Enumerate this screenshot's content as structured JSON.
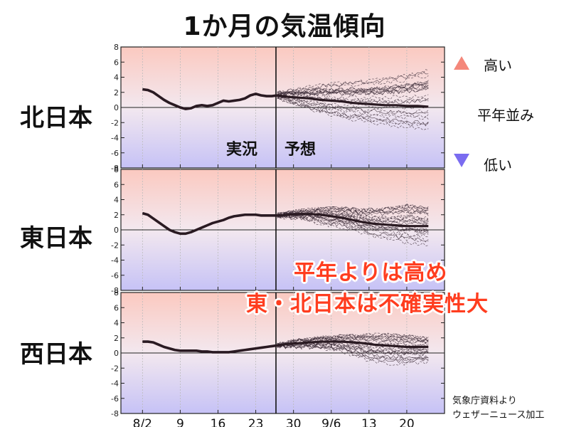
{
  "title": "1か月の気温傾向",
  "legend": {
    "high": "高い",
    "normal": "平年並み",
    "low": "低い",
    "high_color": "#f08070",
    "low_color": "#7070f0"
  },
  "annotations": {
    "line1": "平年よりは高め",
    "line2": "東・北日本は不確実性大",
    "color": "#ff3d1f"
  },
  "labels": {
    "actual": "実況",
    "forecast": "予想"
  },
  "source": {
    "line1": "気象庁資料より",
    "line2": "ウェザーニュース加工"
  },
  "chart_data": [
    {
      "type": "line",
      "region": "北日本",
      "ylim": [
        -8,
        8
      ],
      "yticks": [
        -8,
        -6,
        -4,
        -2,
        0,
        2,
        4,
        6,
        8
      ],
      "x_tick_labels": [
        "8/2",
        "9",
        "16",
        "23",
        "30",
        "9/6",
        "13",
        "20"
      ],
      "x_tick_days": [
        0,
        7,
        14,
        21,
        28,
        35,
        42,
        49
      ],
      "forecast_start_day": 25,
      "observed": {
        "x": [
          0,
          1,
          2,
          3,
          4,
          5,
          6,
          7,
          8,
          9,
          10,
          11,
          12,
          13,
          14,
          15,
          16,
          17,
          18,
          19,
          20,
          21,
          22,
          23,
          24,
          25
        ],
        "y": [
          2.4,
          2.3,
          2.0,
          1.5,
          1.0,
          0.6,
          0.3,
          0.0,
          -0.2,
          -0.1,
          0.2,
          0.3,
          0.2,
          0.3,
          0.6,
          0.9,
          0.8,
          0.9,
          1.0,
          1.2,
          1.6,
          1.8,
          1.6,
          1.5,
          1.5,
          1.6
        ]
      },
      "ensemble_mean": {
        "x": [
          25,
          27,
          29,
          31,
          33,
          35,
          37,
          39,
          41,
          43,
          45,
          47,
          49,
          51,
          53
        ],
        "y": [
          1.6,
          1.4,
          1.3,
          1.2,
          1.0,
          0.9,
          0.8,
          0.6,
          0.5,
          0.4,
          0.3,
          0.3,
          0.2,
          0.2,
          0.1
        ]
      },
      "ensemble_spread": {
        "x": [
          25,
          29,
          33,
          37,
          41,
          45,
          49,
          53
        ],
        "upper": [
          2.0,
          2.8,
          3.4,
          3.8,
          4.2,
          4.6,
          5.2,
          6.0
        ],
        "lower": [
          1.2,
          0.0,
          -1.0,
          -1.8,
          -2.4,
          -2.8,
          -3.2,
          -3.4
        ]
      }
    },
    {
      "type": "line",
      "region": "東日本",
      "ylim": [
        -8,
        8
      ],
      "yticks": [
        -8,
        -6,
        -4,
        -2,
        0,
        2,
        4,
        6,
        8
      ],
      "x_tick_labels": [
        "8/2",
        "9",
        "16",
        "23",
        "30",
        "9/6",
        "13",
        "20"
      ],
      "x_tick_days": [
        0,
        7,
        14,
        21,
        28,
        35,
        42,
        49
      ],
      "forecast_start_day": 25,
      "observed": {
        "x": [
          0,
          1,
          2,
          3,
          4,
          5,
          6,
          7,
          8,
          9,
          10,
          11,
          12,
          13,
          14,
          15,
          16,
          17,
          18,
          19,
          20,
          21,
          22,
          23,
          24,
          25
        ],
        "y": [
          2.2,
          2.0,
          1.5,
          1.0,
          0.5,
          0.0,
          -0.3,
          -0.5,
          -0.5,
          -0.3,
          0.0,
          0.3,
          0.6,
          0.9,
          1.1,
          1.3,
          1.6,
          1.8,
          1.9,
          2.0,
          2.0,
          2.0,
          1.9,
          1.9,
          1.9,
          1.9
        ]
      },
      "ensemble_mean": {
        "x": [
          25,
          27,
          29,
          31,
          33,
          35,
          37,
          39,
          41,
          43,
          45,
          47,
          49,
          51,
          53
        ],
        "y": [
          1.9,
          2.0,
          2.1,
          2.1,
          2.0,
          1.8,
          1.6,
          1.3,
          1.0,
          0.8,
          0.7,
          0.6,
          0.5,
          0.5,
          0.5
        ]
      },
      "ensemble_spread": {
        "x": [
          25,
          29,
          33,
          37,
          41,
          45,
          49,
          53
        ],
        "upper": [
          2.1,
          2.6,
          3.0,
          3.2,
          3.0,
          3.2,
          3.8,
          3.4
        ],
        "lower": [
          1.7,
          1.4,
          0.6,
          0.0,
          -0.8,
          -1.6,
          -2.2,
          -2.4
        ]
      }
    },
    {
      "type": "line",
      "region": "西日本",
      "ylim": [
        -8,
        8
      ],
      "yticks": [
        -8,
        -6,
        -4,
        -2,
        0,
        2,
        4,
        6,
        8
      ],
      "x_tick_labels": [
        "8/2",
        "9",
        "16",
        "23",
        "30",
        "9/6",
        "13",
        "20"
      ],
      "x_tick_days": [
        0,
        7,
        14,
        21,
        28,
        35,
        42,
        49
      ],
      "forecast_start_day": 25,
      "observed": {
        "x": [
          0,
          1,
          2,
          3,
          4,
          5,
          6,
          7,
          8,
          9,
          10,
          11,
          12,
          13,
          14,
          15,
          16,
          17,
          18,
          19,
          20,
          21,
          22,
          23,
          24,
          25
        ],
        "y": [
          1.5,
          1.5,
          1.4,
          1.1,
          0.8,
          0.6,
          0.4,
          0.3,
          0.3,
          0.3,
          0.3,
          0.2,
          0.2,
          0.1,
          0.1,
          0.1,
          0.1,
          0.2,
          0.3,
          0.4,
          0.5,
          0.6,
          0.7,
          0.8,
          0.9,
          1.0
        ]
      },
      "ensemble_mean": {
        "x": [
          25,
          27,
          29,
          31,
          33,
          35,
          37,
          39,
          41,
          43,
          45,
          47,
          49,
          51,
          53
        ],
        "y": [
          1.0,
          1.2,
          1.3,
          1.4,
          1.5,
          1.5,
          1.5,
          1.4,
          1.3,
          1.1,
          1.0,
          0.9,
          0.8,
          0.8,
          0.8
        ]
      },
      "ensemble_spread": {
        "x": [
          25,
          29,
          33,
          37,
          41,
          45,
          49,
          53
        ],
        "upper": [
          1.2,
          1.8,
          2.2,
          2.4,
          2.6,
          2.8,
          2.6,
          2.2
        ],
        "lower": [
          0.8,
          0.6,
          0.4,
          0.0,
          -1.2,
          -1.8,
          -1.8,
          -1.6
        ]
      }
    }
  ]
}
